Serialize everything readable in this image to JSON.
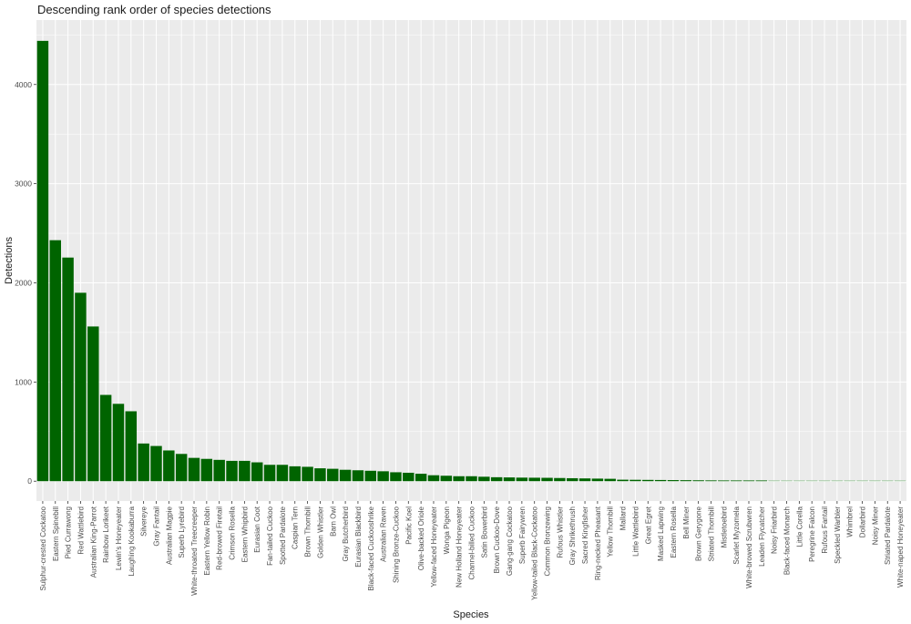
{
  "chart_data": {
    "type": "bar",
    "title": "Descending rank order of species detections",
    "xlabel": "Species",
    "ylabel": "Detections",
    "ylim": [
      -200,
      4650
    ],
    "yticks": [
      0,
      1000,
      2000,
      3000,
      4000
    ],
    "grid": true,
    "legend": "none",
    "colors": {
      "bar_strong": "#006400",
      "bar_light": "#90c090",
      "panel": "#ebebeb",
      "grid": "#ffffff"
    },
    "categories": [
      "Sulphur-crested Cockatoo",
      "Eastern Spinebill",
      "Pied Currawong",
      "Red Wattlebird",
      "Australian King-Parrot",
      "Rainbow Lorikeet",
      "Lewin's Honeyeater",
      "Laughing Kookaburra",
      "Silvereye",
      "Gray Fantail",
      "Australian Magpie",
      "Superb Lyrebird",
      "White-throated Treecreeper",
      "Eastern Yellow Robin",
      "Red-browed Firetail",
      "Crimson Rosella",
      "Eastern Whipbird",
      "Eurasian Coot",
      "Fan-tailed Cuckoo",
      "Spotted Pardalote",
      "Caspian Tern",
      "Brown Thornbill",
      "Golden Whistler",
      "Barn Owl",
      "Gray Butcherbird",
      "Eurasian Blackbird",
      "Black-faced Cuckooshrike",
      "Australian Raven",
      "Shining Bronze-Cuckoo",
      "Pacific Koel",
      "Olive-backed Oriole",
      "Yellow-faced Honeyeater",
      "Wonga Pigeon",
      "New Holland Honeyeater",
      "Channel-billed Cuckoo",
      "Satin Bowerbird",
      "Brown Cuckoo-Dove",
      "Gang-gang Cockatoo",
      "Superb Fairywren",
      "Yellow-tailed Black-Cockatoo",
      "Common Bronzewing",
      "Rufous Whistler",
      "Gray Shrikethrush",
      "Sacred Kingfisher",
      "Ring-necked Pheasant",
      "Yellow Thornbill",
      "Mallard",
      "Little Wattlebird",
      "Great Egret",
      "Masked Lapwing",
      "Eastern Rosella",
      "Bell Miner",
      "Brown Gerygone",
      "Striated Thornbill",
      "Mistletoebird",
      "Scarlet Myzomela",
      "White-browed Scrubwren",
      "Leaden Flycatcher",
      "Noisy Friarbird",
      "Black-faced Monarch",
      "Little Corella",
      "Peregrine Falcon",
      "Rufous Fantail",
      "Speckled Warbler",
      "Whimbrel",
      "Dollarbird",
      "Noisy Miner",
      "Striated Pardalote",
      "White-naped Honeyeater"
    ],
    "values": [
      4440,
      2430,
      2255,
      1900,
      1560,
      870,
      780,
      705,
      380,
      355,
      310,
      275,
      235,
      225,
      215,
      205,
      205,
      190,
      165,
      165,
      150,
      145,
      130,
      125,
      115,
      110,
      105,
      100,
      90,
      85,
      75,
      60,
      55,
      50,
      50,
      45,
      40,
      38,
      36,
      35,
      34,
      32,
      30,
      28,
      26,
      24,
      15,
      14,
      13,
      12,
      11,
      10,
      9,
      8,
      7,
      6,
      5,
      5,
      4,
      4,
      3,
      3,
      3,
      2,
      2,
      2,
      1,
      1,
      1
    ]
  }
}
